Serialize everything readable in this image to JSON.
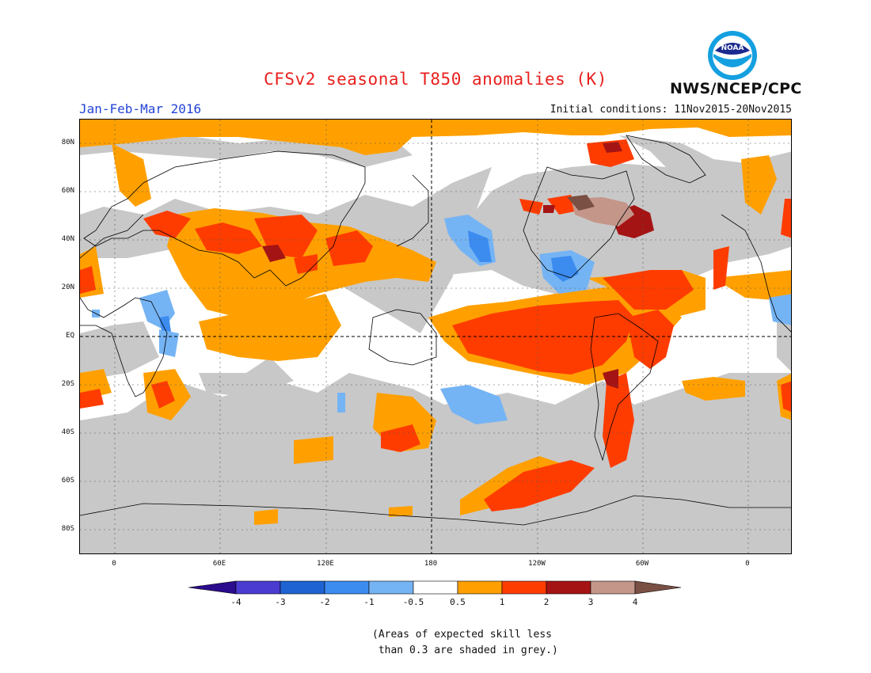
{
  "header": {
    "title": "CFSv2 seasonal T850 anomalies (K)",
    "period": "Jan-Feb-Mar 2016",
    "initial_conditions": "Initial conditions: 11Nov2015-20Nov2015",
    "agency": "NWS/NCEP/CPC",
    "logo_text": "NOAA"
  },
  "map": {
    "projection": "cylindrical equidistant",
    "lat_labels": [
      "80N",
      "60N",
      "40N",
      "20N",
      "EQ",
      "20S",
      "40S",
      "60S",
      "80S"
    ],
    "lon_labels": [
      "0",
      "60E",
      "120E",
      "180",
      "120W",
      "60W",
      "0"
    ],
    "colors": {
      "grey": "#c8c8c8",
      "orange": "#ffa000",
      "red": "#ff3c00",
      "dark_red": "#a51414",
      "tan": "#c4968a",
      "brown": "#7a4f44",
      "light_blue": "#75b4f4",
      "blue": "#3c8cf0"
    }
  },
  "legend": {
    "labels": [
      "-4",
      "-3",
      "-2",
      "-1",
      "-0.5",
      "0.5",
      "1",
      "2",
      "3",
      "4"
    ],
    "colors": [
      "#2a0c8c",
      "#4a3cd0",
      "#1f63d2",
      "#3c8cf0",
      "#75b4f4",
      "#ffffff",
      "#ffa000",
      "#ff3c00",
      "#a51414",
      "#c4968a",
      "#7a4f44"
    ]
  },
  "note": "(Areas of expected skill less\n than 0.3 are shaded in grey.)"
}
